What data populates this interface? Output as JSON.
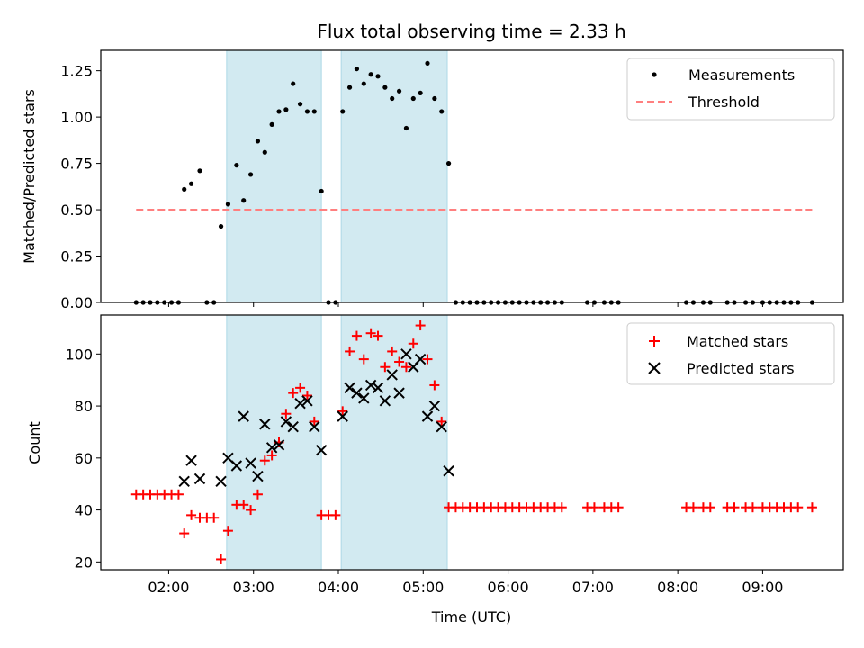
{
  "chart_data": {
    "type": "scatter",
    "title": "Flux total observing time = 2.33 h",
    "xlabel": "Time (UTC)",
    "x_ticks": [
      "02:00",
      "03:00",
      "04:00",
      "05:00",
      "06:00",
      "07:00",
      "08:00",
      "09:00"
    ],
    "x_range_hours": [
      1.2,
      9.95
    ],
    "shaded_intervals": [
      [
        "02:41",
        "03:48"
      ],
      [
        "04:02",
        "05:17"
      ]
    ],
    "shade_color": "#add8e6",
    "top": {
      "ylabel": "Matched/Predicted stars",
      "ylim": [
        0,
        1.36
      ],
      "y_ticks": [
        "0.00",
        "0.25",
        "0.50",
        "0.75",
        "1.00",
        "1.25"
      ],
      "legend": [
        "Measurements",
        "Threshold"
      ],
      "threshold": {
        "value": 0.5,
        "x_range": [
          "01:37",
          "09:35"
        ],
        "color": "#ff7f7f"
      },
      "measurements": {
        "color": "#000000",
        "points": [
          [
            "01:37",
            0
          ],
          [
            "01:42",
            0
          ],
          [
            "01:47",
            0
          ],
          [
            "01:52",
            0
          ],
          [
            "01:57",
            0
          ],
          [
            "02:02",
            0
          ],
          [
            "02:07",
            0
          ],
          [
            "02:11",
            0.61
          ],
          [
            "02:16",
            0.64
          ],
          [
            "02:22",
            0.71
          ],
          [
            "02:27",
            0
          ],
          [
            "02:32",
            0
          ],
          [
            "02:37",
            0.41
          ],
          [
            "02:42",
            0.53
          ],
          [
            "02:48",
            0.74
          ],
          [
            "02:53",
            0.55
          ],
          [
            "02:58",
            0.69
          ],
          [
            "03:03",
            0.87
          ],
          [
            "03:08",
            0.81
          ],
          [
            "03:13",
            0.96
          ],
          [
            "03:18",
            1.03
          ],
          [
            "03:23",
            1.04
          ],
          [
            "03:28",
            1.18
          ],
          [
            "03:33",
            1.07
          ],
          [
            "03:38",
            1.03
          ],
          [
            "03:43",
            1.03
          ],
          [
            "03:48",
            0.6
          ],
          [
            "03:53",
            0
          ],
          [
            "03:58",
            0
          ],
          [
            "04:03",
            1.03
          ],
          [
            "04:08",
            1.16
          ],
          [
            "04:13",
            1.26
          ],
          [
            "04:18",
            1.18
          ],
          [
            "04:23",
            1.23
          ],
          [
            "04:28",
            1.22
          ],
          [
            "04:33",
            1.16
          ],
          [
            "04:38",
            1.1
          ],
          [
            "04:43",
            1.14
          ],
          [
            "04:48",
            0.94
          ],
          [
            "04:53",
            1.1
          ],
          [
            "04:58",
            1.13
          ],
          [
            "05:03",
            1.29
          ],
          [
            "05:08",
            1.1
          ],
          [
            "05:13",
            1.03
          ],
          [
            "05:18",
            0.75
          ],
          [
            "05:23",
            0
          ],
          [
            "05:28",
            0
          ],
          [
            "05:33",
            0
          ],
          [
            "05:38",
            0
          ],
          [
            "05:43",
            0
          ],
          [
            "05:48",
            0
          ],
          [
            "05:53",
            0
          ],
          [
            "05:58",
            0
          ],
          [
            "06:03",
            0
          ],
          [
            "06:08",
            0
          ],
          [
            "06:13",
            0
          ],
          [
            "06:18",
            0
          ],
          [
            "06:23",
            0
          ],
          [
            "06:28",
            0
          ],
          [
            "06:33",
            0
          ],
          [
            "06:38",
            0
          ],
          [
            "06:56",
            0
          ],
          [
            "07:01",
            0
          ],
          [
            "07:08",
            0
          ],
          [
            "07:13",
            0
          ],
          [
            "07:18",
            0
          ],
          [
            "08:06",
            0
          ],
          [
            "08:11",
            0
          ],
          [
            "08:18",
            0
          ],
          [
            "08:23",
            0
          ],
          [
            "08:35",
            0
          ],
          [
            "08:40",
            0
          ],
          [
            "08:48",
            0
          ],
          [
            "08:53",
            0
          ],
          [
            "09:00",
            0
          ],
          [
            "09:05",
            0
          ],
          [
            "09:10",
            0
          ],
          [
            "09:15",
            0
          ],
          [
            "09:20",
            0
          ],
          [
            "09:25",
            0
          ],
          [
            "09:35",
            0
          ]
        ]
      }
    },
    "bottom": {
      "ylabel": "Count",
      "ylim": [
        17,
        115
      ],
      "y_ticks": [
        "20",
        "40",
        "60",
        "80",
        "100"
      ],
      "legend": [
        "Matched stars",
        "Predicted stars"
      ],
      "matched": {
        "color": "#ff0000",
        "points": [
          [
            "01:37",
            46
          ],
          [
            "01:42",
            46
          ],
          [
            "01:47",
            46
          ],
          [
            "01:52",
            46
          ],
          [
            "01:57",
            46
          ],
          [
            "02:02",
            46
          ],
          [
            "02:07",
            46
          ],
          [
            "02:11",
            31
          ],
          [
            "02:16",
            38
          ],
          [
            "02:22",
            37
          ],
          [
            "02:27",
            37
          ],
          [
            "02:32",
            37
          ],
          [
            "02:37",
            21
          ],
          [
            "02:42",
            32
          ],
          [
            "02:48",
            42
          ],
          [
            "02:53",
            42
          ],
          [
            "02:58",
            40
          ],
          [
            "03:03",
            46
          ],
          [
            "03:08",
            59
          ],
          [
            "03:13",
            61
          ],
          [
            "03:18",
            66
          ],
          [
            "03:23",
            77
          ],
          [
            "03:28",
            85
          ],
          [
            "03:33",
            87
          ],
          [
            "03:38",
            84
          ],
          [
            "03:43",
            74
          ],
          [
            "03:48",
            38
          ],
          [
            "03:53",
            38
          ],
          [
            "03:58",
            38
          ],
          [
            "04:03",
            78
          ],
          [
            "04:08",
            101
          ],
          [
            "04:13",
            107
          ],
          [
            "04:18",
            98
          ],
          [
            "04:23",
            108
          ],
          [
            "04:28",
            107
          ],
          [
            "04:33",
            95
          ],
          [
            "04:38",
            101
          ],
          [
            "04:43",
            97
          ],
          [
            "04:48",
            95
          ],
          [
            "04:53",
            104
          ],
          [
            "04:58",
            111
          ],
          [
            "05:03",
            98
          ],
          [
            "05:08",
            88
          ],
          [
            "05:13",
            74
          ],
          [
            "05:18",
            41
          ],
          [
            "05:23",
            41
          ],
          [
            "05:28",
            41
          ],
          [
            "05:33",
            41
          ],
          [
            "05:38",
            41
          ],
          [
            "05:43",
            41
          ],
          [
            "05:48",
            41
          ],
          [
            "05:53",
            41
          ],
          [
            "05:58",
            41
          ],
          [
            "06:03",
            41
          ],
          [
            "06:08",
            41
          ],
          [
            "06:13",
            41
          ],
          [
            "06:18",
            41
          ],
          [
            "06:23",
            41
          ],
          [
            "06:28",
            41
          ],
          [
            "06:33",
            41
          ],
          [
            "06:38",
            41
          ],
          [
            "06:56",
            41
          ],
          [
            "07:01",
            41
          ],
          [
            "07:08",
            41
          ],
          [
            "07:13",
            41
          ],
          [
            "07:18",
            41
          ],
          [
            "08:06",
            41
          ],
          [
            "08:11",
            41
          ],
          [
            "08:18",
            41
          ],
          [
            "08:23",
            41
          ],
          [
            "08:35",
            41
          ],
          [
            "08:40",
            41
          ],
          [
            "08:48",
            41
          ],
          [
            "08:53",
            41
          ],
          [
            "09:00",
            41
          ],
          [
            "09:05",
            41
          ],
          [
            "09:10",
            41
          ],
          [
            "09:15",
            41
          ],
          [
            "09:20",
            41
          ],
          [
            "09:25",
            41
          ],
          [
            "09:35",
            41
          ]
        ]
      },
      "predicted": {
        "color": "#000000",
        "points": [
          [
            "02:11",
            51
          ],
          [
            "02:16",
            59
          ],
          [
            "02:22",
            52
          ],
          [
            "02:37",
            51
          ],
          [
            "02:42",
            60
          ],
          [
            "02:48",
            57
          ],
          [
            "02:53",
            76
          ],
          [
            "02:58",
            58
          ],
          [
            "03:03",
            53
          ],
          [
            "03:08",
            73
          ],
          [
            "03:13",
            64
          ],
          [
            "03:18",
            65
          ],
          [
            "03:23",
            74
          ],
          [
            "03:28",
            72
          ],
          [
            "03:33",
            81
          ],
          [
            "03:38",
            82
          ],
          [
            "03:43",
            72
          ],
          [
            "03:48",
            63
          ],
          [
            "04:03",
            76
          ],
          [
            "04:08",
            87
          ],
          [
            "04:13",
            85
          ],
          [
            "04:18",
            83
          ],
          [
            "04:23",
            88
          ],
          [
            "04:28",
            87
          ],
          [
            "04:33",
            82
          ],
          [
            "04:38",
            92
          ],
          [
            "04:43",
            85
          ],
          [
            "04:48",
            100
          ],
          [
            "04:53",
            95
          ],
          [
            "04:58",
            98
          ],
          [
            "05:03",
            76
          ],
          [
            "05:08",
            80
          ],
          [
            "05:13",
            72
          ],
          [
            "05:18",
            55
          ]
        ]
      }
    }
  }
}
